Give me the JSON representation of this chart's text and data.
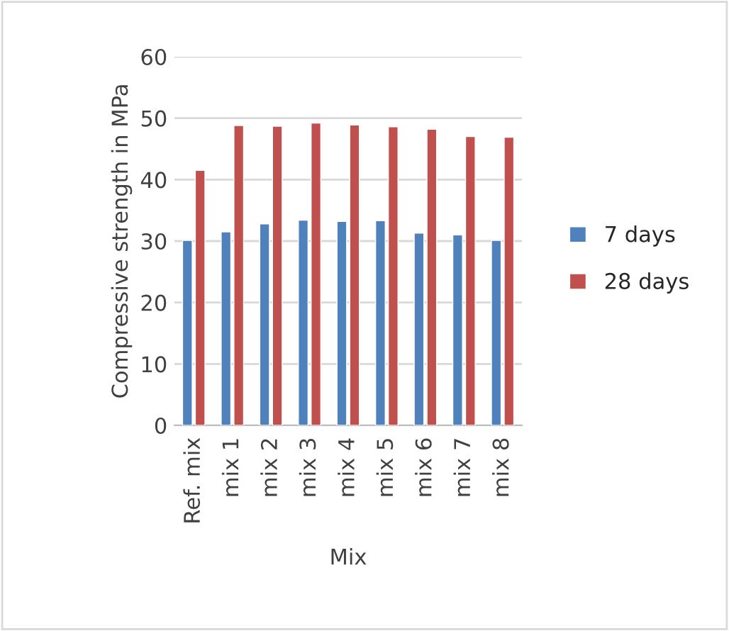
{
  "chart_data": {
    "type": "bar",
    "xlabel": "Mix",
    "ylabel": "Compressive strength in MPa",
    "categories": [
      "Ref. mix",
      "mix 1",
      "mix 2",
      "mix 3",
      "mix 4",
      "mix 5",
      "mix 6",
      "mix 7",
      "mix 8"
    ],
    "series": [
      {
        "name": "7 days",
        "color": "#4f81bd",
        "values": [
          30.1,
          31.5,
          32.8,
          33.4,
          33.2,
          33.3,
          31.3,
          31.0,
          30.1
        ]
      },
      {
        "name": "28 days",
        "color": "#c0504d",
        "values": [
          41.5,
          48.8,
          48.7,
          49.2,
          48.9,
          48.6,
          48.2,
          47.0,
          46.9
        ]
      }
    ],
    "ylim": [
      0,
      60
    ],
    "yticks": [
      0,
      10,
      20,
      30,
      40,
      50,
      60
    ],
    "grid": "y",
    "legend": "right"
  }
}
